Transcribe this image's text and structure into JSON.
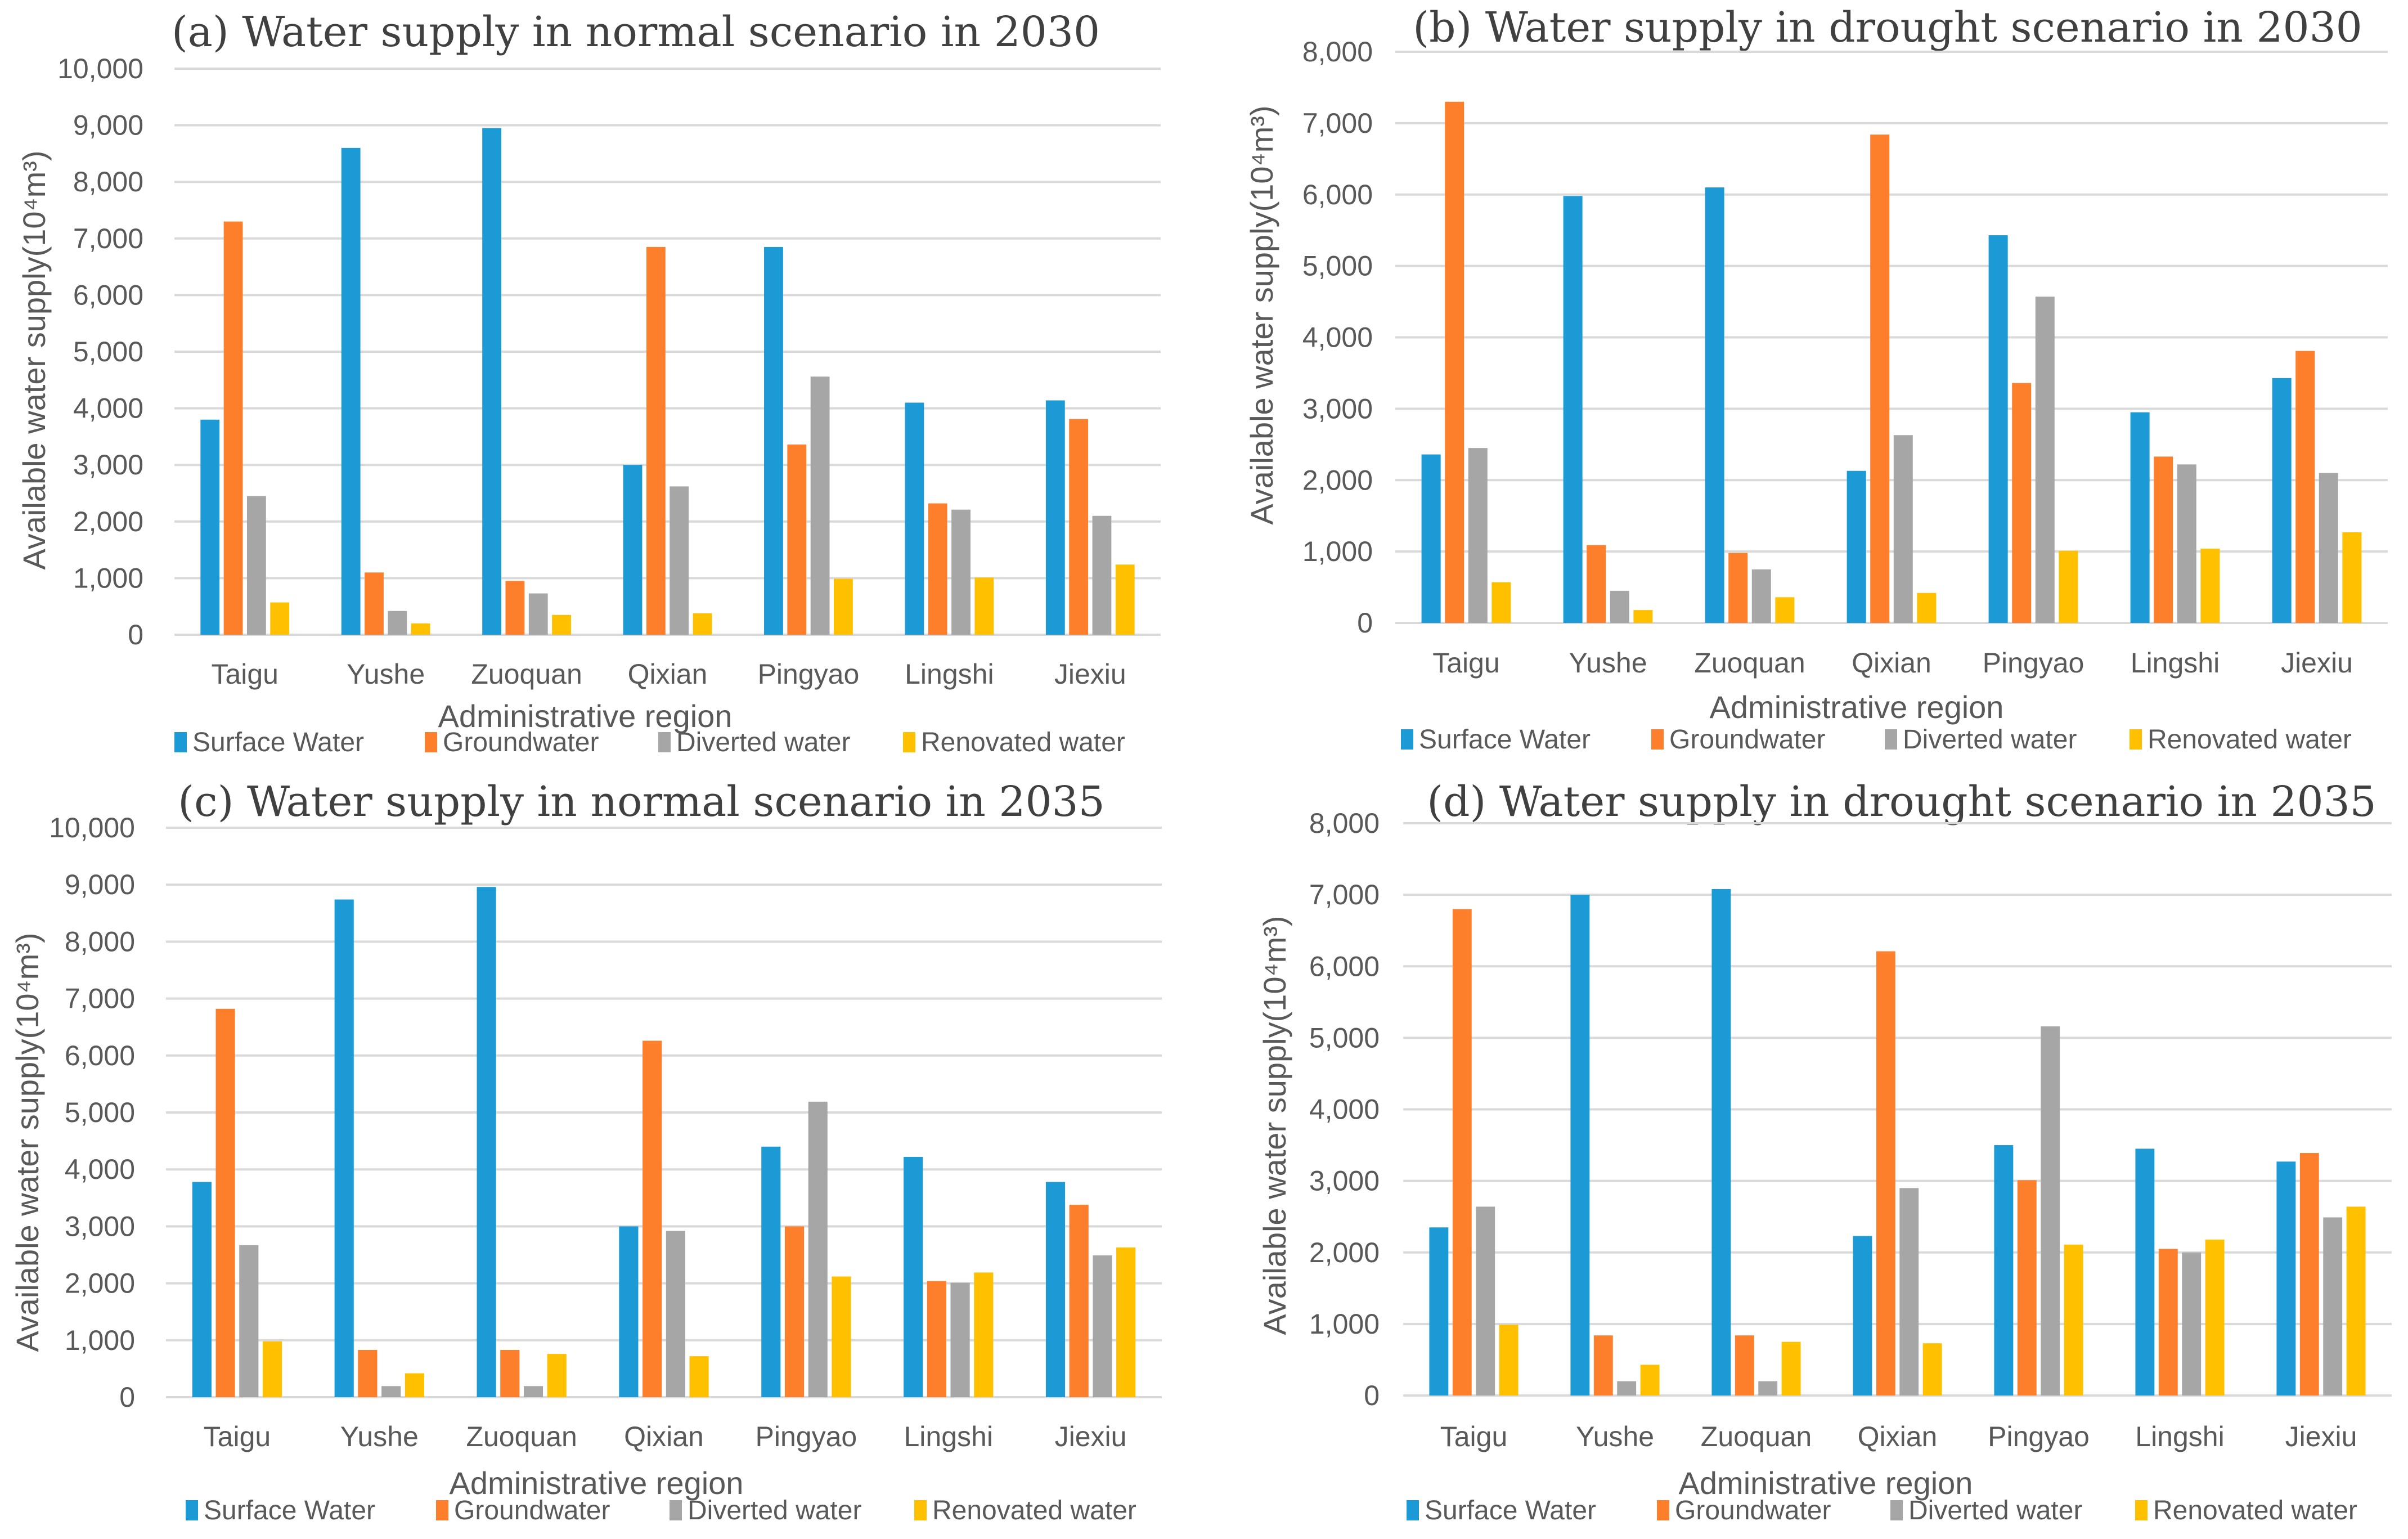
{
  "chart_data": [
    {
      "type": "bar",
      "panel": "a",
      "title": "(a) Water supply in normal scenario in 2030",
      "xlabel": "Administrative region",
      "ylabel": "Available water supply(10⁴m³)",
      "ylim": [
        0,
        10000
      ],
      "ytick_step": 1000,
      "yticks": [
        "0",
        "1,000",
        "2,000",
        "3,000",
        "4,000",
        "5,000",
        "6,000",
        "7,000",
        "8,000",
        "9,000",
        "10,000"
      ],
      "grid": true,
      "legend_position": "bottom",
      "categories": [
        "Taigu",
        "Yushe",
        "Zuoquan",
        "Qixian",
        "Pingyao",
        "Lingshi",
        "Jiexiu"
      ],
      "series": [
        {
          "name": "Surface Water",
          "color": "#1b9ad6",
          "values": [
            3800,
            8600,
            8950,
            3000,
            6850,
            4100,
            4140
          ]
        },
        {
          "name": "Groundwater",
          "color": "#fd7f2b",
          "values": [
            7300,
            1100,
            950,
            6850,
            3360,
            2320,
            3810
          ]
        },
        {
          "name": "Diverted water",
          "color": "#a6a6a6",
          "values": [
            2450,
            420,
            730,
            2620,
            4560,
            2210,
            2100
          ]
        },
        {
          "name": "Renovated water",
          "color": "#ffc000",
          "values": [
            570,
            200,
            350,
            380,
            990,
            1010,
            1240
          ]
        }
      ]
    },
    {
      "type": "bar",
      "panel": "b",
      "title": "(b) Water supply in drought scenario in 2030",
      "xlabel": "Administrative region",
      "ylabel": "Available water supply(10⁴m³)",
      "ylim": [
        0,
        8000
      ],
      "ytick_step": 1000,
      "yticks": [
        "0",
        "1,000",
        "2,000",
        "3,000",
        "4,000",
        "5,000",
        "6,000",
        "7,000",
        "8,000"
      ],
      "grid": true,
      "legend_position": "bottom",
      "categories": [
        "Taigu",
        "Yushe",
        "Zuoquan",
        "Qixian",
        "Pingyao",
        "Lingshi",
        "Jiexiu"
      ],
      "series": [
        {
          "name": "Surface Water",
          "color": "#1b9ad6",
          "values": [
            2360,
            5980,
            6100,
            2130,
            5430,
            2950,
            3430
          ]
        },
        {
          "name": "Groundwater",
          "color": "#fd7f2b",
          "values": [
            7300,
            1090,
            980,
            6840,
            3360,
            2330,
            3810
          ]
        },
        {
          "name": "Diverted water",
          "color": "#a6a6a6",
          "values": [
            2450,
            450,
            750,
            2630,
            4570,
            2220,
            2100
          ]
        },
        {
          "name": "Renovated water",
          "color": "#ffc000",
          "values": [
            570,
            180,
            360,
            420,
            1010,
            1040,
            1270
          ]
        }
      ]
    },
    {
      "type": "bar",
      "panel": "c",
      "title": "(c) Water supply in normal scenario in 2035",
      "xlabel": "Administrative region",
      "ylabel": "Available water supply(10⁴m³)",
      "ylim": [
        0,
        10000
      ],
      "ytick_step": 1000,
      "yticks": [
        "0",
        "1,000",
        "2,000",
        "3,000",
        "4,000",
        "5,000",
        "6,000",
        "7,000",
        "8,000",
        "9,000",
        "10,000"
      ],
      "grid": true,
      "legend_position": "bottom",
      "categories": [
        "Taigu",
        "Yushe",
        "Zuoquan",
        "Qixian",
        "Pingyao",
        "Lingshi",
        "Jiexiu"
      ],
      "series": [
        {
          "name": "Surface Water",
          "color": "#1b9ad6",
          "values": [
            3780,
            8740,
            8960,
            3000,
            4400,
            4220,
            3780
          ]
        },
        {
          "name": "Groundwater",
          "color": "#fd7f2b",
          "values": [
            6820,
            830,
            830,
            6260,
            3000,
            2040,
            3380
          ]
        },
        {
          "name": "Diverted water",
          "color": "#a6a6a6",
          "values": [
            2670,
            195,
            195,
            2920,
            5190,
            2010,
            2490
          ]
        },
        {
          "name": "Renovated water",
          "color": "#ffc000",
          "values": [
            980,
            420,
            760,
            720,
            2120,
            2190,
            2630
          ]
        }
      ]
    },
    {
      "type": "bar",
      "panel": "d",
      "title": "(d) Water supply in drought scenario in 2035",
      "xlabel": "Administrative region",
      "ylabel": "Available water supply(10⁴m³)",
      "ylim": [
        0,
        8000
      ],
      "ytick_step": 1000,
      "yticks": [
        "0",
        "1,000",
        "2,000",
        "3,000",
        "4,000",
        "5,000",
        "6,000",
        "7,000",
        "8,000"
      ],
      "grid": true,
      "legend_position": "bottom",
      "categories": [
        "Taigu",
        "Yushe",
        "Zuoquan",
        "Qixian",
        "Pingyao",
        "Lingshi",
        "Jiexiu"
      ],
      "series": [
        {
          "name": "Surface Water",
          "color": "#1b9ad6",
          "values": [
            2350,
            7000,
            7080,
            2230,
            3500,
            3450,
            3270
          ]
        },
        {
          "name": "Groundwater",
          "color": "#fd7f2b",
          "values": [
            6800,
            840,
            840,
            6210,
            3010,
            2050,
            3390
          ]
        },
        {
          "name": "Diverted water",
          "color": "#a6a6a6",
          "values": [
            2640,
            200,
            200,
            2900,
            5160,
            2000,
            2490
          ]
        },
        {
          "name": "Renovated water",
          "color": "#ffc000",
          "values": [
            990,
            430,
            750,
            730,
            2110,
            2180,
            2640
          ]
        }
      ]
    }
  ]
}
